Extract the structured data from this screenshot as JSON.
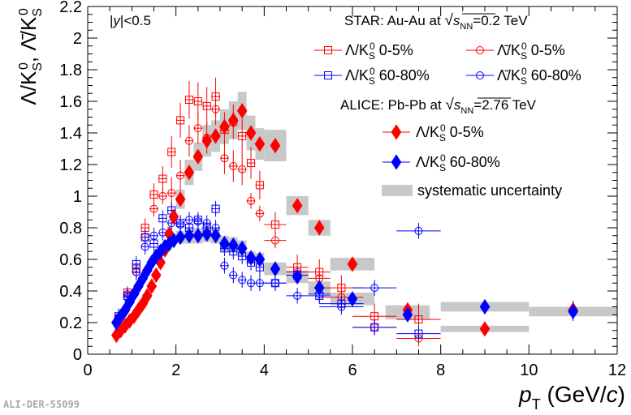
{
  "figure_id": "ALI-DER-55099",
  "chart_data": {
    "type": "scatter",
    "xlabel": "p_T (GeV/c)",
    "ylabel": "Λ/K0S, Λ̄/K0S",
    "xlim": [
      0,
      12
    ],
    "ylim": [
      0,
      2.2
    ],
    "x_ticks": [
      "0",
      "2",
      "4",
      "6",
      "8",
      "10",
      "12"
    ],
    "y_ticks": [
      "0",
      "0.2",
      "0.4",
      "0.6",
      "0.8",
      "1",
      "1.2",
      "1.4",
      "1.6",
      "1.8",
      "2",
      "2.2"
    ],
    "grid": false,
    "annotations": {
      "rapidity": "|y|<0.5",
      "star_header": "STAR: Au-Au at √sNN=0.2 TeV",
      "alice_header": "ALICE: Pb-Pb at √sNN=2.76 TeV"
    },
    "legend": {
      "placement": "top-right",
      "entries": [
        "Λ/K0S 0-5%",
        "Λ̄/K0S 0-5%",
        "Λ/K0S 60-80%",
        "Λ̄/K0S 60-80%",
        "Λ/K0S 0-5%",
        "Λ/K0S 60-80%",
        "systematic uncertainty"
      ]
    },
    "colors": {
      "red": "#ff0000",
      "blue": "#0000ff",
      "systematic": "#c8c8c8"
    },
    "series": [
      {
        "name": "Λ/K0S 0-5% (STAR)",
        "marker": "open-square",
        "color": "#ff0000",
        "x": [
          0.7,
          0.9,
          1.1,
          1.3,
          1.5,
          1.7,
          1.9,
          2.1,
          2.3,
          2.5,
          2.7,
          2.9,
          3.1,
          3.3,
          3.5,
          3.7,
          3.9,
          4.25,
          4.75,
          5.25,
          5.75,
          6.5,
          7.5
        ],
        "y": [
          0.23,
          0.39,
          0.54,
          0.8,
          1.01,
          1.11,
          1.28,
          1.48,
          1.61,
          1.6,
          1.57,
          1.63,
          1.42,
          1.47,
          1.38,
          1.21,
          1.07,
          0.82,
          0.55,
          0.52,
          0.42,
          0.24,
          0.22
        ],
        "yerr": [
          0.02,
          0.03,
          0.04,
          0.06,
          0.07,
          0.08,
          0.1,
          0.11,
          0.12,
          0.12,
          0.12,
          0.12,
          0.11,
          0.11,
          0.11,
          0.1,
          0.09,
          0.08,
          0.08,
          0.08,
          0.08,
          0.08,
          0.1
        ]
      },
      {
        "name": "Λ̄/K0S 0-5% (STAR)",
        "marker": "open-circle",
        "color": "#ff0000",
        "x": [
          0.7,
          0.9,
          1.1,
          1.3,
          1.5,
          1.7,
          1.9,
          2.1,
          2.3,
          2.5,
          2.7,
          2.9,
          3.1,
          3.3,
          3.5,
          3.7,
          3.9,
          4.25,
          4.75,
          5.25,
          5.75,
          6.5,
          7.5
        ],
        "y": [
          0.22,
          0.38,
          0.52,
          0.74,
          0.92,
          1.0,
          1.02,
          1.13,
          1.35,
          1.43,
          1.37,
          1.55,
          1.24,
          1.19,
          1.17,
          0.97,
          0.89,
          0.72,
          0.52,
          0.48,
          0.36,
          0.17,
          0.1
        ]
      },
      {
        "name": "Λ/K0S 60-80% (STAR)",
        "marker": "open-square",
        "color": "#0000ff",
        "x": [
          0.7,
          0.9,
          1.1,
          1.3,
          1.5,
          1.7,
          1.9,
          2.1,
          2.3,
          2.5,
          2.7,
          2.9,
          3.1,
          3.3,
          3.5,
          3.7,
          3.9,
          4.25,
          4.75,
          5.25,
          5.75,
          6.5,
          7.5
        ],
        "y": [
          0.24,
          0.37,
          0.57,
          0.74,
          0.7,
          0.86,
          0.91,
          0.83,
          0.8,
          0.85,
          0.8,
          0.92,
          0.67,
          0.65,
          0.62,
          0.58,
          0.55,
          0.45,
          0.5,
          0.37,
          0.32,
          0.17,
          0.13
        ]
      },
      {
        "name": "Λ̄/K0S 60-80% (STAR)",
        "marker": "open-circle",
        "color": "#0000ff",
        "x": [
          0.7,
          0.9,
          1.1,
          1.3,
          1.5,
          1.7,
          1.9,
          2.1,
          2.3,
          2.5,
          2.7,
          2.9,
          3.1,
          3.3,
          3.5,
          3.7,
          3.9,
          4.25,
          4.75,
          5.25,
          5.75,
          6.5,
          7.5
        ],
        "y": [
          0.23,
          0.36,
          0.52,
          0.68,
          0.75,
          0.77,
          0.83,
          0.82,
          0.85,
          0.84,
          0.83,
          0.8,
          0.56,
          0.5,
          0.47,
          0.45,
          0.45,
          0.45,
          0.37,
          0.38,
          0.3,
          0.42,
          0.78
        ]
      },
      {
        "name": "Λ/K0S 0-5% (ALICE)",
        "marker": "filled-diamond",
        "color": "#ff0000",
        "x": [
          0.65,
          0.75,
          0.85,
          0.95,
          1.05,
          1.15,
          1.25,
          1.35,
          1.45,
          1.55,
          1.65,
          1.75,
          1.85,
          1.95,
          2.1,
          2.3,
          2.5,
          2.7,
          2.9,
          3.1,
          3.3,
          3.5,
          3.7,
          3.9,
          4.25,
          4.75,
          5.25,
          6.0,
          7.25,
          9.0,
          11.0
        ],
        "y": [
          0.12,
          0.15,
          0.18,
          0.21,
          0.24,
          0.28,
          0.32,
          0.37,
          0.43,
          0.5,
          0.58,
          0.66,
          0.76,
          0.87,
          0.98,
          1.15,
          1.25,
          1.35,
          1.38,
          1.44,
          1.48,
          1.54,
          1.4,
          1.33,
          1.32,
          0.94,
          0.8,
          0.57,
          0.28,
          0.16,
          0.28
        ],
        "yerr": [
          0.01,
          0.01,
          0.01,
          0.01,
          0.01,
          0.01,
          0.01,
          0.01,
          0.01,
          0.01,
          0.01,
          0.01,
          0.01,
          0.01,
          0.02,
          0.02,
          0.02,
          0.02,
          0.02,
          0.02,
          0.02,
          0.02,
          0.03,
          0.03,
          0.03,
          0.03,
          0.03,
          0.03,
          0.04,
          0.03,
          0.06
        ],
        "sys": [
          0.01,
          0.01,
          0.01,
          0.01,
          0.02,
          0.02,
          0.02,
          0.02,
          0.03,
          0.03,
          0.04,
          0.04,
          0.05,
          0.05,
          0.06,
          0.08,
          0.09,
          0.1,
          0.1,
          0.11,
          0.12,
          0.12,
          0.11,
          0.1,
          0.1,
          0.06,
          0.05,
          0.04,
          0.03,
          0.02,
          0.02
        ]
      },
      {
        "name": "Λ/K0S 60-80% (ALICE)",
        "marker": "filled-diamond",
        "color": "#0000ff",
        "x": [
          0.65,
          0.75,
          0.85,
          0.95,
          1.05,
          1.15,
          1.25,
          1.35,
          1.45,
          1.55,
          1.65,
          1.75,
          1.85,
          1.95,
          2.1,
          2.3,
          2.5,
          2.7,
          2.9,
          3.1,
          3.3,
          3.5,
          3.7,
          3.9,
          4.25,
          4.75,
          5.25,
          6.0,
          7.25,
          9.0,
          11.0
        ],
        "y": [
          0.2,
          0.24,
          0.28,
          0.33,
          0.38,
          0.43,
          0.48,
          0.53,
          0.58,
          0.62,
          0.65,
          0.68,
          0.7,
          0.72,
          0.74,
          0.75,
          0.75,
          0.76,
          0.75,
          0.7,
          0.69,
          0.67,
          0.61,
          0.6,
          0.54,
          0.49,
          0.42,
          0.35,
          0.25,
          0.3,
          0.27
        ],
        "yerr": [
          0.01,
          0.01,
          0.01,
          0.01,
          0.01,
          0.01,
          0.01,
          0.01,
          0.01,
          0.01,
          0.01,
          0.01,
          0.01,
          0.01,
          0.02,
          0.02,
          0.02,
          0.02,
          0.02,
          0.02,
          0.02,
          0.02,
          0.03,
          0.03,
          0.03,
          0.03,
          0.03,
          0.03,
          0.04,
          0.03,
          0.06
        ],
        "sys": [
          0.01,
          0.01,
          0.02,
          0.02,
          0.02,
          0.02,
          0.03,
          0.03,
          0.03,
          0.03,
          0.04,
          0.04,
          0.04,
          0.04,
          0.04,
          0.05,
          0.05,
          0.05,
          0.05,
          0.05,
          0.05,
          0.05,
          0.04,
          0.04,
          0.04,
          0.04,
          0.04,
          0.04,
          0.03,
          0.03,
          0.03
        ]
      }
    ]
  }
}
